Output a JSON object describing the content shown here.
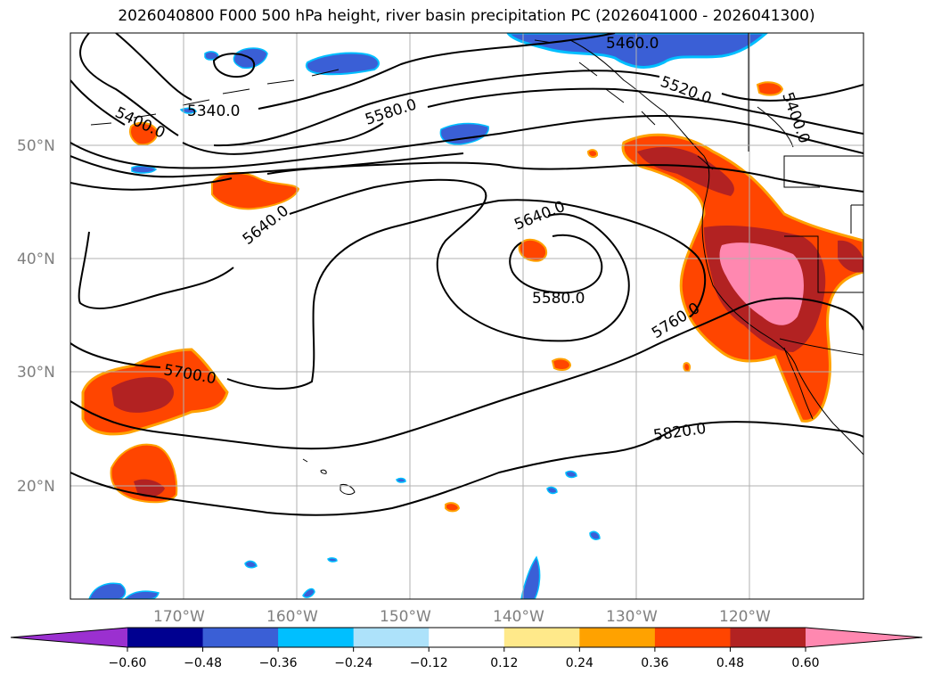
{
  "title": "2026040800 F000 500 hPa height, river basin precipitation PC (2026041000 - 2026041300)",
  "lat_labels": [
    "50°N",
    "40°N",
    "30°N",
    "20°N"
  ],
  "lon_labels": [
    "170°W",
    "160°W",
    "150°W",
    "140°W",
    "130°W",
    "120°W"
  ],
  "contour_labels": [
    "5460.0",
    "5520.0",
    "5400.0",
    "5340.0",
    "5400.0",
    "5580.0",
    "5640.0",
    "5640.0",
    "5580.0",
    "5700.0",
    "5760.0",
    "5820.0"
  ],
  "colorbar": {
    "ticks": [
      "−0.60",
      "−0.48",
      "−0.36",
      "−0.24",
      "−0.12",
      "0.12",
      "0.24",
      "0.36",
      "0.48",
      "0.60"
    ],
    "colors": [
      "#9b30d0",
      "#000090",
      "#3a5fd6",
      "#00bfff",
      "#ade2fa",
      "#ffffff",
      "#ffe98a",
      "#ffa200",
      "#ff4500",
      "#b22222",
      "#ff88b0"
    ]
  },
  "chart_data": {
    "type": "map",
    "field": "500 hPa geopotential height (contours, m) and river basin precipitation PC (shaded)",
    "lat_range": [
      10,
      60
    ],
    "lon_range": [
      -180,
      -110
    ],
    "contour_levels": [
      5340,
      5400,
      5460,
      5520,
      5580,
      5640,
      5700,
      5760,
      5820
    ],
    "shading_levels": [
      -0.6,
      -0.48,
      -0.36,
      -0.24,
      -0.12,
      0.12,
      0.24,
      0.36,
      0.48,
      0.6
    ]
  }
}
